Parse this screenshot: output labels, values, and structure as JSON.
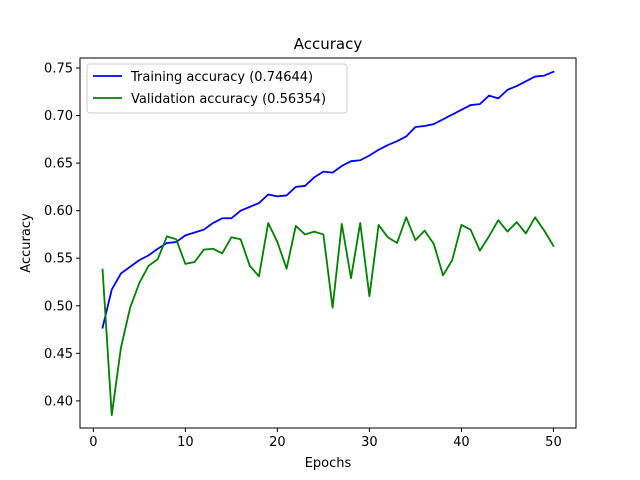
{
  "chart_data": {
    "type": "line",
    "title": "Accuracy",
    "xlabel": "Epochs",
    "ylabel": "Accuracy",
    "xlim": [
      -1.45,
      52.45
    ],
    "ylim": [
      0.3715,
      0.7605
    ],
    "xticks": [
      0,
      10,
      20,
      30,
      40,
      50
    ],
    "yticks": [
      0.4,
      0.45,
      0.5,
      0.55,
      0.6,
      0.65,
      0.7,
      0.75
    ],
    "grid": false,
    "legend_position": "top-left",
    "x": [
      1,
      2,
      3,
      4,
      5,
      6,
      7,
      8,
      9,
      10,
      11,
      12,
      13,
      14,
      15,
      16,
      17,
      18,
      19,
      20,
      21,
      22,
      23,
      24,
      25,
      26,
      27,
      28,
      29,
      30,
      31,
      32,
      33,
      34,
      35,
      36,
      37,
      38,
      39,
      40,
      41,
      42,
      43,
      44,
      45,
      46,
      47,
      48,
      49,
      50
    ],
    "series": [
      {
        "name": "Training accuracy (0.74644)",
        "color": "#0000ff",
        "values": [
          0.477,
          0.517,
          0.534,
          0.541,
          0.548,
          0.553,
          0.56,
          0.566,
          0.567,
          0.574,
          0.577,
          0.58,
          0.587,
          0.592,
          0.592,
          0.6,
          0.604,
          0.608,
          0.617,
          0.615,
          0.616,
          0.625,
          0.626,
          0.635,
          0.641,
          0.64,
          0.647,
          0.652,
          0.653,
          0.658,
          0.664,
          0.669,
          0.673,
          0.678,
          0.688,
          0.689,
          0.691,
          0.696,
          0.701,
          0.706,
          0.711,
          0.712,
          0.721,
          0.718,
          0.727,
          0.731,
          0.736,
          0.741,
          0.742,
          0.746
        ]
      },
      {
        "name": "Validation accuracy (0.56354)",
        "color": "#008000",
        "values": [
          0.538,
          0.385,
          0.456,
          0.498,
          0.524,
          0.542,
          0.549,
          0.573,
          0.57,
          0.544,
          0.546,
          0.559,
          0.56,
          0.555,
          0.572,
          0.57,
          0.542,
          0.531,
          0.587,
          0.567,
          0.539,
          0.584,
          0.575,
          0.578,
          0.575,
          0.498,
          0.586,
          0.529,
          0.587,
          0.51,
          0.585,
          0.572,
          0.566,
          0.593,
          0.569,
          0.579,
          0.565,
          0.532,
          0.548,
          0.585,
          0.58,
          0.558,
          0.573,
          0.59,
          0.578,
          0.588,
          0.576,
          0.593,
          0.579,
          0.563
        ]
      }
    ]
  }
}
